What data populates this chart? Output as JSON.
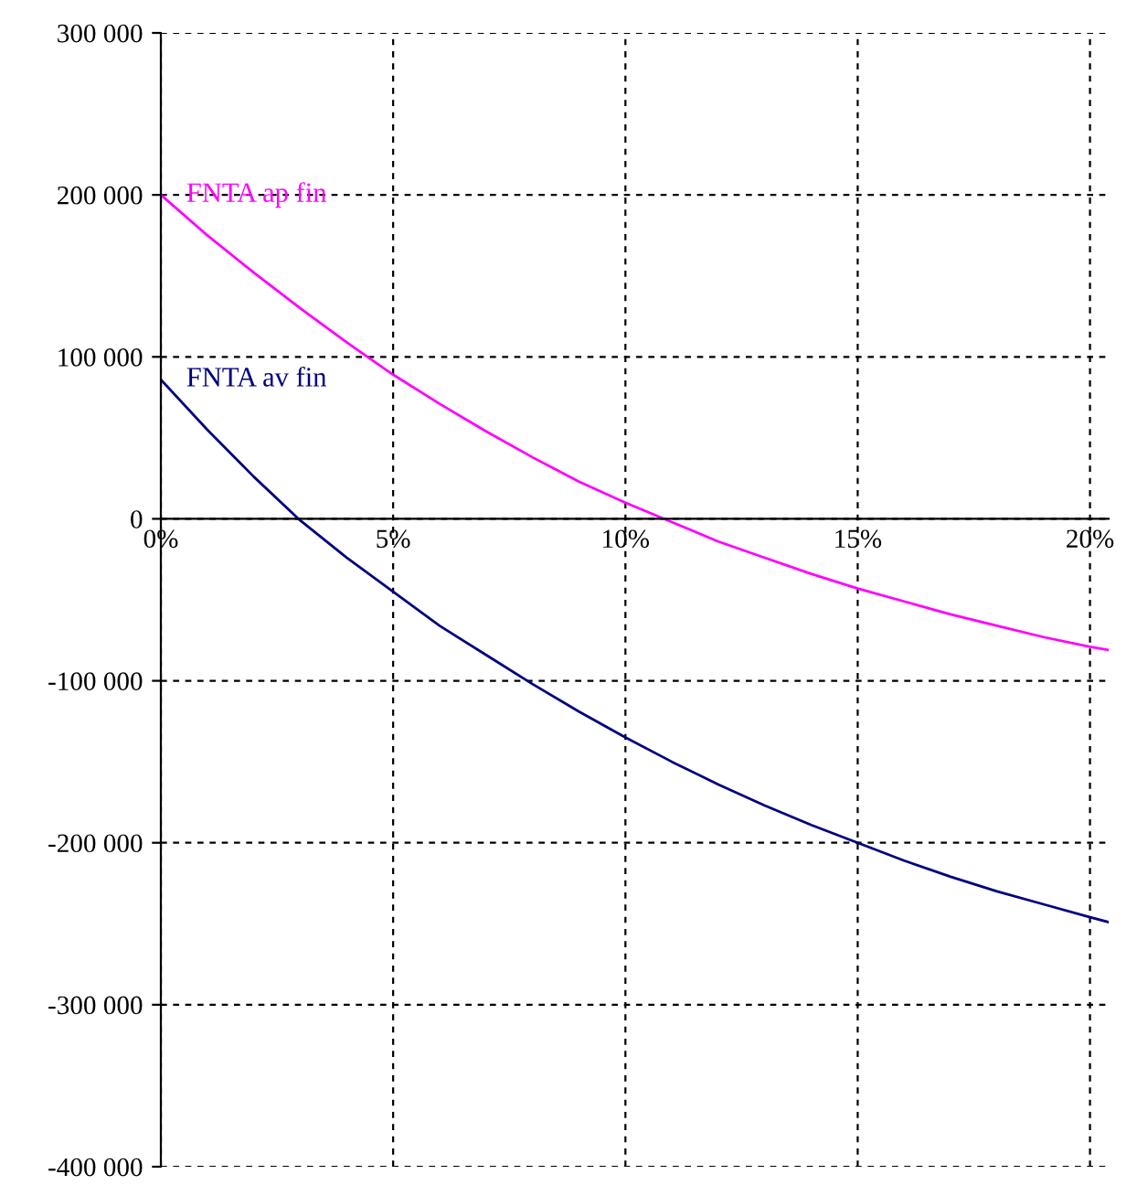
{
  "chart_data": {
    "type": "line",
    "x": [
      0,
      1,
      2,
      3,
      4,
      5,
      6,
      7,
      8,
      9,
      10,
      11,
      12,
      13,
      14,
      15,
      16,
      17,
      18,
      19,
      20,
      20.4
    ],
    "series": [
      {
        "name": "FNTA ap fin",
        "color": "#ff00ff",
        "values": [
          200000,
          175000,
          152000,
          130000,
          109000,
          89000,
          71000,
          54000,
          38000,
          23000,
          10000,
          -2000,
          -14000,
          -24000,
          -34000,
          -43000,
          -51000,
          -59000,
          -66000,
          -73000,
          -79000,
          -81000
        ]
      },
      {
        "name": "FNTA av fin",
        "color": "#000080",
        "values": [
          86000,
          55000,
          26000,
          -1000,
          -24000,
          -45000,
          -66000,
          -84000,
          -102000,
          -119000,
          -135000,
          -150000,
          -164000,
          -177000,
          -189000,
          -200000,
          -211000,
          -221000,
          -230000,
          -238000,
          -246000,
          -249000
        ]
      }
    ],
    "xlim": [
      0,
      20.4
    ],
    "xticks": [
      {
        "value": 0,
        "label": "0%"
      },
      {
        "value": 5,
        "label": "5%"
      },
      {
        "value": 10,
        "label": "10%"
      },
      {
        "value": 15,
        "label": "15%"
      },
      {
        "value": 20,
        "label": "20%"
      }
    ],
    "ylim": [
      -400000,
      300000
    ],
    "yticks": [
      {
        "value": -400000,
        "label": "-400 000"
      },
      {
        "value": -300000,
        "label": "-300 000"
      },
      {
        "value": -200000,
        "label": "-200 000"
      },
      {
        "value": -100000,
        "label": "-100 000"
      },
      {
        "value": 0,
        "label": "0"
      },
      {
        "value": 100000,
        "label": "100 000"
      },
      {
        "value": 200000,
        "label": "200 000"
      },
      {
        "value": 300000,
        "label": "300 000"
      }
    ],
    "grid": true,
    "line_style": "solid",
    "marker": "none"
  }
}
